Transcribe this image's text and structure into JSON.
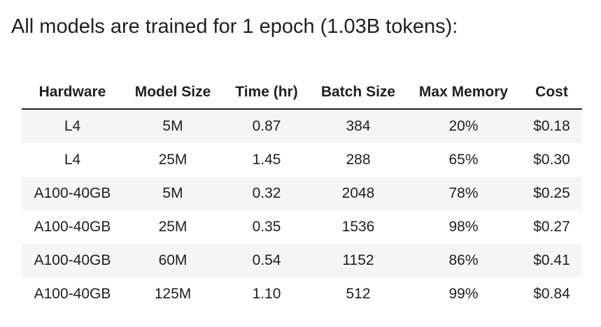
{
  "heading": "All models are trained for 1 epoch (1.03B tokens):",
  "table": {
    "headers": [
      "Hardware",
      "Model Size",
      "Time (hr)",
      "Batch Size",
      "Max Memory",
      "Cost"
    ],
    "rows": [
      [
        "L4",
        "5M",
        "0.87",
        "384",
        "20%",
        "$0.18"
      ],
      [
        "L4",
        "25M",
        "1.45",
        "288",
        "65%",
        "$0.30"
      ],
      [
        "A100-40GB",
        "5M",
        "0.32",
        "2048",
        "78%",
        "$0.25"
      ],
      [
        "A100-40GB",
        "25M",
        "0.35",
        "1536",
        "98%",
        "$0.27"
      ],
      [
        "A100-40GB",
        "60M",
        "0.54",
        "1152",
        "86%",
        "$0.41"
      ],
      [
        "A100-40GB",
        "125M",
        "1.10",
        "512",
        "99%",
        "$0.84"
      ]
    ]
  }
}
